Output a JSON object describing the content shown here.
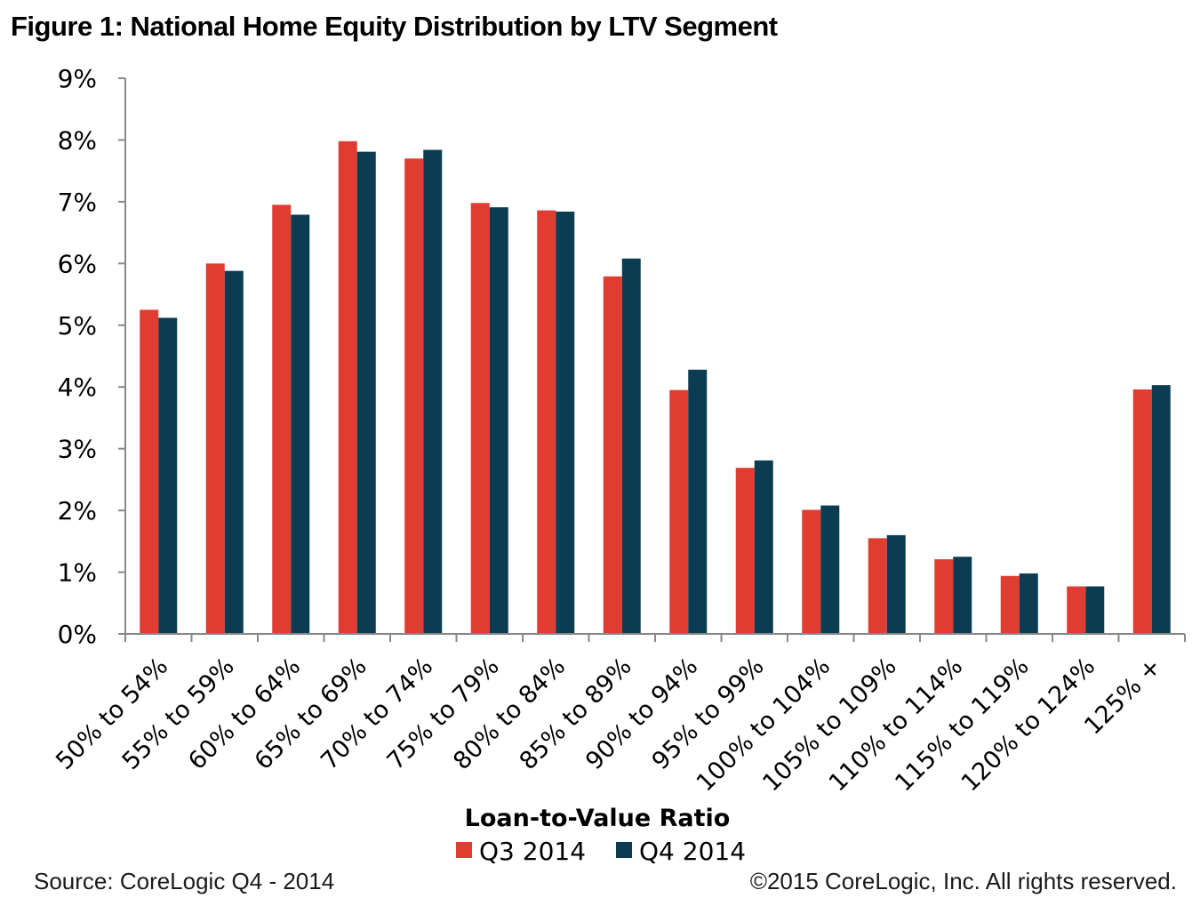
{
  "title": "Figure 1: National Home Equity Distribution by LTV Segment",
  "footer": {
    "source": "Source: CoreLogic Q4 - 2014",
    "copyright": "©2015 CoreLogic, Inc. All rights reserved."
  },
  "chart_data": {
    "type": "bar",
    "xlabel": "Loan-to-Value  Ratio",
    "ylabel": "",
    "ylim": [
      0,
      9
    ],
    "yticks": [
      "0%",
      "1%",
      "2%",
      "3%",
      "4%",
      "5%",
      "6%",
      "7%",
      "8%",
      "9%"
    ],
    "categories": [
      "50% to 54%",
      "55% to 59%",
      "60% to 64%",
      "65% to 69%",
      "70% to 74%",
      "75% to 79%",
      "80% to 84%",
      "85% to 89%",
      "90% to 94%",
      "95% to 99%",
      "100% to 104%",
      "105% to 109%",
      "110% to 114%",
      "115% to 119%",
      "120% to 124%",
      "125% +"
    ],
    "series": [
      {
        "name": "Q3 2014",
        "color": "#e03c31",
        "values": [
          5.25,
          6.0,
          6.95,
          7.98,
          7.7,
          6.98,
          6.86,
          5.79,
          3.95,
          2.69,
          2.01,
          1.55,
          1.21,
          0.94,
          0.77,
          3.96
        ]
      },
      {
        "name": "Q4 2014",
        "color": "#0b3c52",
        "values": [
          5.12,
          5.88,
          6.79,
          7.81,
          7.84,
          6.91,
          6.84,
          6.08,
          4.28,
          2.81,
          2.08,
          1.6,
          1.25,
          0.98,
          0.77,
          4.03
        ]
      }
    ],
    "legend_position": "bottom",
    "grid": false
  }
}
